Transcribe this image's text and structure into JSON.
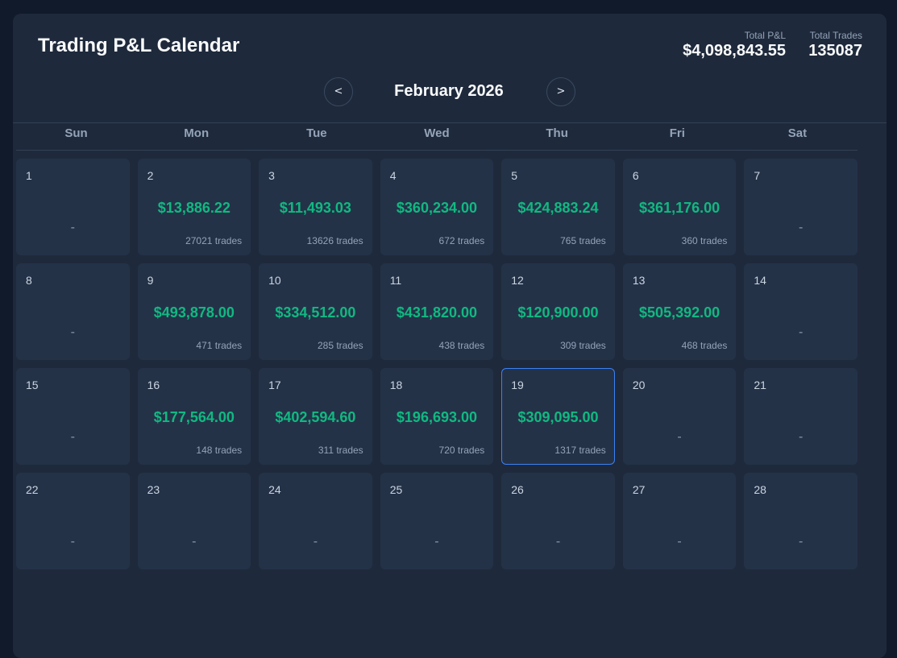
{
  "header": {
    "title": "Trading P&L Calendar",
    "total_pnl_label": "Total P&L",
    "total_pnl_value": "$4,098,843.55",
    "total_trades_label": "Total Trades",
    "total_trades_value": "135087"
  },
  "nav": {
    "prev_label": "<",
    "next_label": ">",
    "month_label": "February 2026"
  },
  "weekdays": [
    "Sun",
    "Mon",
    "Tue",
    "Wed",
    "Thu",
    "Fri",
    "Sat"
  ],
  "days": [
    {
      "day": "1",
      "pnl": null,
      "trades": null,
      "empty": "-"
    },
    {
      "day": "2",
      "pnl": "$13,886.22",
      "trades": "27021 trades"
    },
    {
      "day": "3",
      "pnl": "$11,493.03",
      "trades": "13626 trades"
    },
    {
      "day": "4",
      "pnl": "$360,234.00",
      "trades": "672 trades"
    },
    {
      "day": "5",
      "pnl": "$424,883.24",
      "trades": "765 trades"
    },
    {
      "day": "6",
      "pnl": "$361,176.00",
      "trades": "360 trades"
    },
    {
      "day": "7",
      "pnl": null,
      "trades": null,
      "empty": "-"
    },
    {
      "day": "8",
      "pnl": null,
      "trades": null,
      "empty": "-"
    },
    {
      "day": "9",
      "pnl": "$493,878.00",
      "trades": "471 trades"
    },
    {
      "day": "10",
      "pnl": "$334,512.00",
      "trades": "285 trades"
    },
    {
      "day": "11",
      "pnl": "$431,820.00",
      "trades": "438 trades"
    },
    {
      "day": "12",
      "pnl": "$120,900.00",
      "trades": "309 trades"
    },
    {
      "day": "13",
      "pnl": "$505,392.00",
      "trades": "468 trades"
    },
    {
      "day": "14",
      "pnl": null,
      "trades": null,
      "empty": "-"
    },
    {
      "day": "15",
      "pnl": null,
      "trades": null,
      "empty": "-"
    },
    {
      "day": "16",
      "pnl": "$177,564.00",
      "trades": "148 trades"
    },
    {
      "day": "17",
      "pnl": "$402,594.60",
      "trades": "311 trades"
    },
    {
      "day": "18",
      "pnl": "$196,693.00",
      "trades": "720 trades"
    },
    {
      "day": "19",
      "pnl": "$309,095.00",
      "trades": "1317 trades",
      "today": true
    },
    {
      "day": "20",
      "pnl": null,
      "trades": null,
      "empty": "-"
    },
    {
      "day": "21",
      "pnl": null,
      "trades": null,
      "empty": "-"
    },
    {
      "day": "22",
      "pnl": null,
      "trades": null,
      "empty": "-"
    },
    {
      "day": "23",
      "pnl": null,
      "trades": null,
      "empty": "-"
    },
    {
      "day": "24",
      "pnl": null,
      "trades": null,
      "empty": "-"
    },
    {
      "day": "25",
      "pnl": null,
      "trades": null,
      "empty": "-"
    },
    {
      "day": "26",
      "pnl": null,
      "trades": null,
      "empty": "-"
    },
    {
      "day": "27",
      "pnl": null,
      "trades": null,
      "empty": "-"
    },
    {
      "day": "28",
      "pnl": null,
      "trades": null,
      "empty": "-"
    }
  ],
  "colors": {
    "positive": "#10b981",
    "today_border": "#3b82f6"
  }
}
